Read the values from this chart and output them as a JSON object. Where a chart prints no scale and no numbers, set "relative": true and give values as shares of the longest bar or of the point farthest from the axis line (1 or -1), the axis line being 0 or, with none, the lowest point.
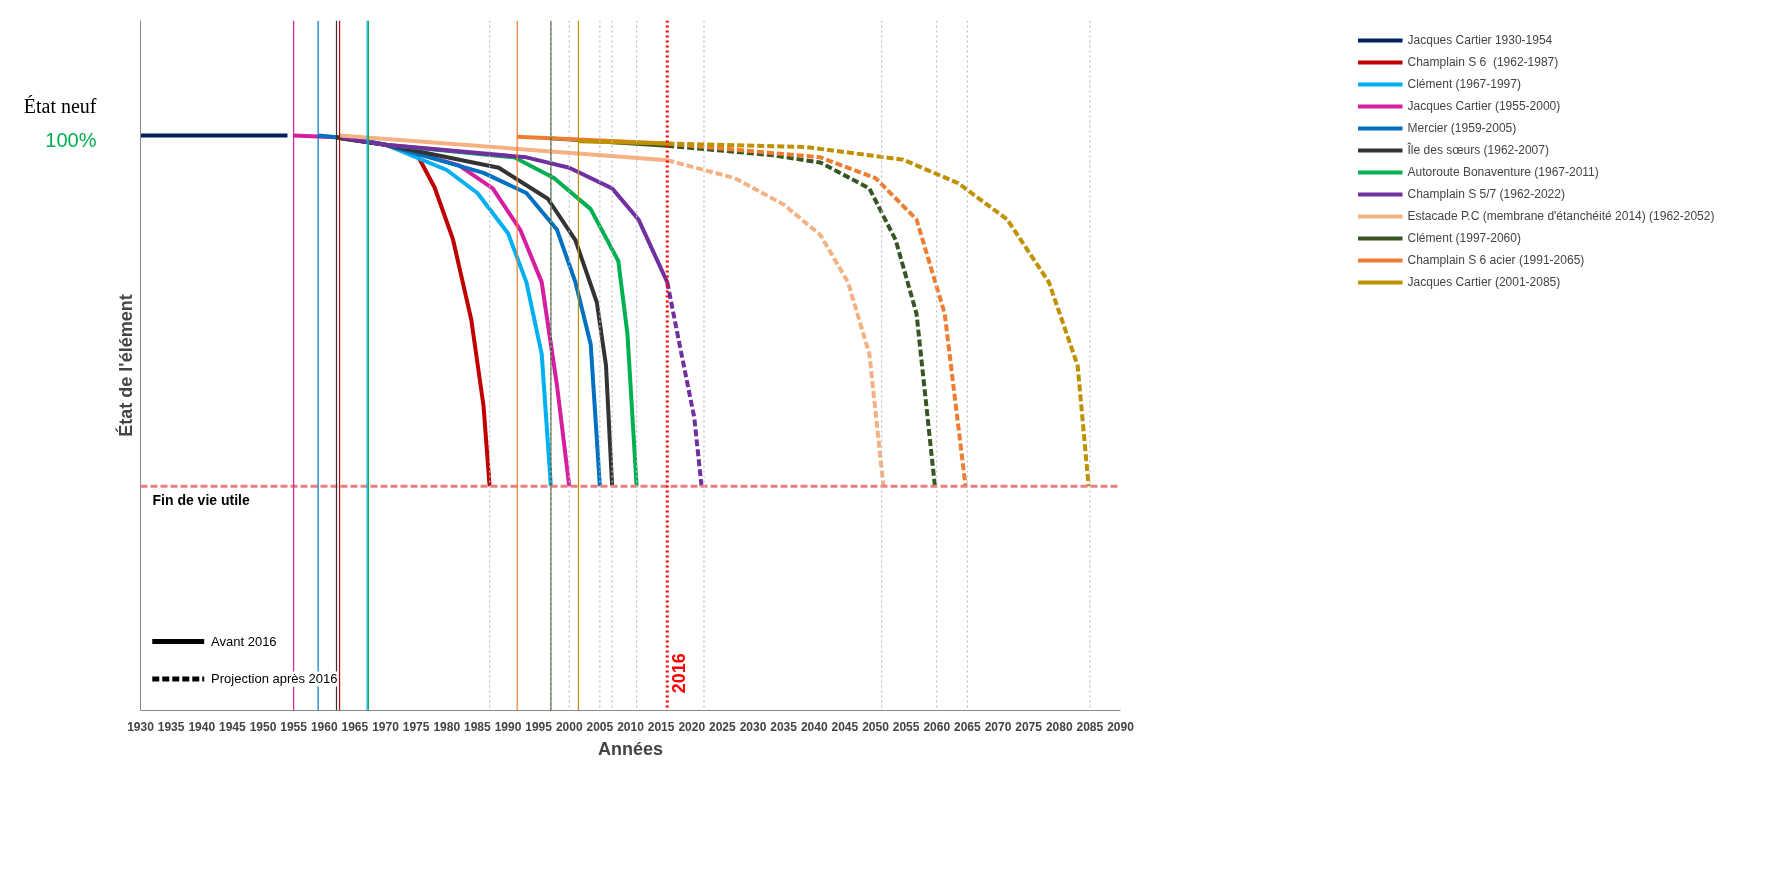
{
  "chart_data": {
    "type": "line",
    "relative": true,
    "xlabel": "Années",
    "ylabel": "État de l'élément",
    "xlim": [
      1930,
      2090
    ],
    "xticks": [
      1930,
      1935,
      1940,
      1945,
      1950,
      1955,
      1960,
      1965,
      1970,
      1975,
      1980,
      1985,
      1990,
      1995,
      2000,
      2005,
      2010,
      2015,
      2020,
      2025,
      2030,
      2035,
      2040,
      2045,
      2050,
      2055,
      2060,
      2065,
      2070,
      2075,
      2080,
      2085,
      2090
    ],
    "legend": "right",
    "grid": false,
    "annotations": [
      {
        "text": "État neuf",
        "x": 1930,
        "y": 1
      },
      {
        "text": "100%",
        "x": 1930,
        "y": 1
      }
    ],
    "ref_lines": [
      {
        "axis": "y",
        "value": 0.39,
        "label": "Fin de vie utile",
        "color": "#f08080",
        "line_style": "dashed"
      },
      {
        "axis": "x",
        "value": 2016,
        "label": "2016",
        "color": "#ff0000",
        "line_style": "dotted"
      },
      {
        "axis": "x",
        "value": 1955,
        "color": "#d61ea0"
      },
      {
        "axis": "x",
        "value": 1959,
        "color": "#0070c0"
      },
      {
        "axis": "x",
        "value": 1962,
        "color": "#333333"
      },
      {
        "axis": "x",
        "value": 1962.5,
        "color": "#c00000"
      },
      {
        "axis": "x",
        "value": 1967,
        "color": "#00b0f0"
      },
      {
        "axis": "x",
        "value": 1967.2,
        "color": "#00b050"
      },
      {
        "axis": "x",
        "value": 1991.5,
        "color": "#ed7d31"
      },
      {
        "axis": "x",
        "value": 1997,
        "color": "#375623"
      },
      {
        "axis": "x",
        "value": 2001.5,
        "color": "#bf9000"
      },
      {
        "axis": "x",
        "value": 1987,
        "color": "#bbbbbb",
        "line_style": "dotted"
      },
      {
        "axis": "x",
        "value": 1997,
        "color": "#bbbbbb",
        "line_style": "dotted"
      },
      {
        "axis": "x",
        "value": 2000,
        "color": "#bbbbbb",
        "line_style": "dotted"
      },
      {
        "axis": "x",
        "value": 2005,
        "color": "#bbbbbb",
        "line_style": "dotted"
      },
      {
        "axis": "x",
        "value": 2007,
        "color": "#bbbbbb",
        "line_style": "dotted"
      },
      {
        "axis": "x",
        "value": 2011,
        "color": "#bbbbbb",
        "line_style": "dotted"
      },
      {
        "axis": "x",
        "value": 2022,
        "color": "#bbbbbb",
        "line_style": "dotted"
      },
      {
        "axis": "x",
        "value": 2051,
        "color": "#bbbbbb",
        "line_style": "dotted"
      },
      {
        "axis": "x",
        "value": 2060,
        "color": "#bbbbbb",
        "line_style": "dotted"
      },
      {
        "axis": "x",
        "value": 2065,
        "color": "#bbbbbb",
        "line_style": "dotted"
      },
      {
        "axis": "x",
        "value": 2085,
        "color": "#bbbbbb",
        "line_style": "dotted"
      }
    ],
    "series": [
      {
        "name": "Jacques Cartier 1930-1954",
        "color": "#002060",
        "x": [
          1930,
          1954
        ],
        "values": [
          1,
          1
        ]
      },
      {
        "name": "Champlain S 6  (1962-1987)",
        "color": "#c00000",
        "x": [
          1962.5,
          1970,
          1975,
          1978,
          1981,
          1984,
          1986,
          1987
        ],
        "values": [
          0.995,
          0.984,
          0.97,
          0.91,
          0.82,
          0.68,
          0.53,
          0.39
        ]
      },
      {
        "name": "Clément (1967-1997)",
        "color": "#00b0f0",
        "x": [
          1967,
          1970,
          1980,
          1985,
          1990,
          1993,
          1995.5,
          1997
        ],
        "values": [
          0.99,
          0.984,
          0.94,
          0.9,
          0.83,
          0.745,
          0.62,
          0.39
        ]
      },
      {
        "name": "Jacques Cartier (1955-2000)",
        "color": "#d61ea0",
        "x": [
          1955,
          1962,
          1970,
          1982,
          1987.5,
          1992,
          1995.5,
          1998,
          2000
        ],
        "values": [
          1,
          0.997,
          0.984,
          0.948,
          0.908,
          0.836,
          0.745,
          0.565,
          0.39
        ]
      },
      {
        "name": "Mercier (1959-2005)",
        "color": "#0070c0",
        "x": [
          1959,
          1962,
          1970,
          1986,
          1993,
          1998,
          2001,
          2003.5,
          2005
        ],
        "values": [
          1,
          0.997,
          0.984,
          0.935,
          0.9,
          0.836,
          0.745,
          0.637,
          0.39
        ]
      },
      {
        "name": "Île des sœurs (1962-2007)",
        "color": "#333333",
        "x": [
          1962,
          1970,
          1988.5,
          1996.5,
          2001,
          2004.5,
          2006,
          2007
        ],
        "values": [
          0.997,
          0.984,
          0.944,
          0.89,
          0.818,
          0.71,
          0.6,
          0.39
        ]
      },
      {
        "name": "Autoroute Bonaventure (1967-2011)",
        "color": "#00b050",
        "x": [
          1967,
          1970,
          1991,
          1997.5,
          2003.5,
          2008,
          2009.5,
          2011
        ],
        "values": [
          0.99,
          0.984,
          0.962,
          0.926,
          0.872,
          0.782,
          0.655,
          0.39
        ]
      },
      {
        "name": "Champlain S 5/7 (1962-2022)",
        "color": "#7030a0",
        "x": [
          1962.7,
          1970,
          1993,
          2000,
          2007,
          2011.3,
          2016
        ],
        "values": [
          0.997,
          0.984,
          0.962,
          0.944,
          0.908,
          0.854,
          0.745
        ]
      },
      {
        "name": "Estacade P.C (membrane d'étanchéité 2014) (1962-2052)",
        "color": "#f4b183",
        "x": [
          1962.5,
          2016
        ],
        "values": [
          1,
          0.957
        ]
      },
      {
        "name": "Clément (1997-2060)",
        "color": "#375623",
        "x": [
          1997,
          2016
        ],
        "values": [
          0.995,
          0.982
        ]
      },
      {
        "name": "Champlain S 6 acier (1991-2065)",
        "color": "#ed7d31",
        "x": [
          1991.5,
          2016
        ],
        "values": [
          0.998,
          0.986
        ]
      },
      {
        "name": "Jacques Cartier (2001-2085)",
        "color": "#bf9000",
        "x": [
          2001.5,
          2016
        ],
        "values": [
          0.99,
          0.986
        ]
      },
      {
        "color": "#7030a0",
        "line_style": "dashed",
        "x": [
          2016,
          2018,
          2020.4,
          2021.6
        ],
        "values": [
          0.745,
          0.637,
          0.51,
          0.39
        ]
      },
      {
        "color": "#f4b183",
        "line_style": "dashed",
        "x": [
          2016,
          2027,
          2035,
          2041,
          2045.5,
          2049,
          2051.3
        ],
        "values": [
          0.957,
          0.926,
          0.88,
          0.827,
          0.745,
          0.62,
          0.39
        ]
      },
      {
        "color": "#375623",
        "line_style": "dashed",
        "x": [
          2016,
          2033,
          2041,
          2049,
          2053.3,
          2056.7,
          2059.7
        ],
        "values": [
          0.982,
          0.966,
          0.953,
          0.908,
          0.818,
          0.69,
          0.39
        ]
      },
      {
        "color": "#ed7d31",
        "line_style": "dashed",
        "x": [
          2016,
          2041,
          2050,
          2056.7,
          2061.3,
          2064.7
        ],
        "values": [
          0.986,
          0.962,
          0.926,
          0.854,
          0.69,
          0.39
        ]
      },
      {
        "color": "#bf9000",
        "line_style": "dashed",
        "x": [
          2016,
          2038.6,
          2054.5,
          2063.5,
          2071.5,
          2078.3,
          2083,
          2084.8
        ],
        "values": [
          0.986,
          0.98,
          0.958,
          0.917,
          0.854,
          0.745,
          0.6,
          0.39
        ]
      },
      {
        "name": "Avant 2016",
        "color": "#000000",
        "line_style": "solid"
      },
      {
        "name": "Projection après 2016",
        "color": "#000000",
        "line_style": "dashed"
      }
    ]
  }
}
